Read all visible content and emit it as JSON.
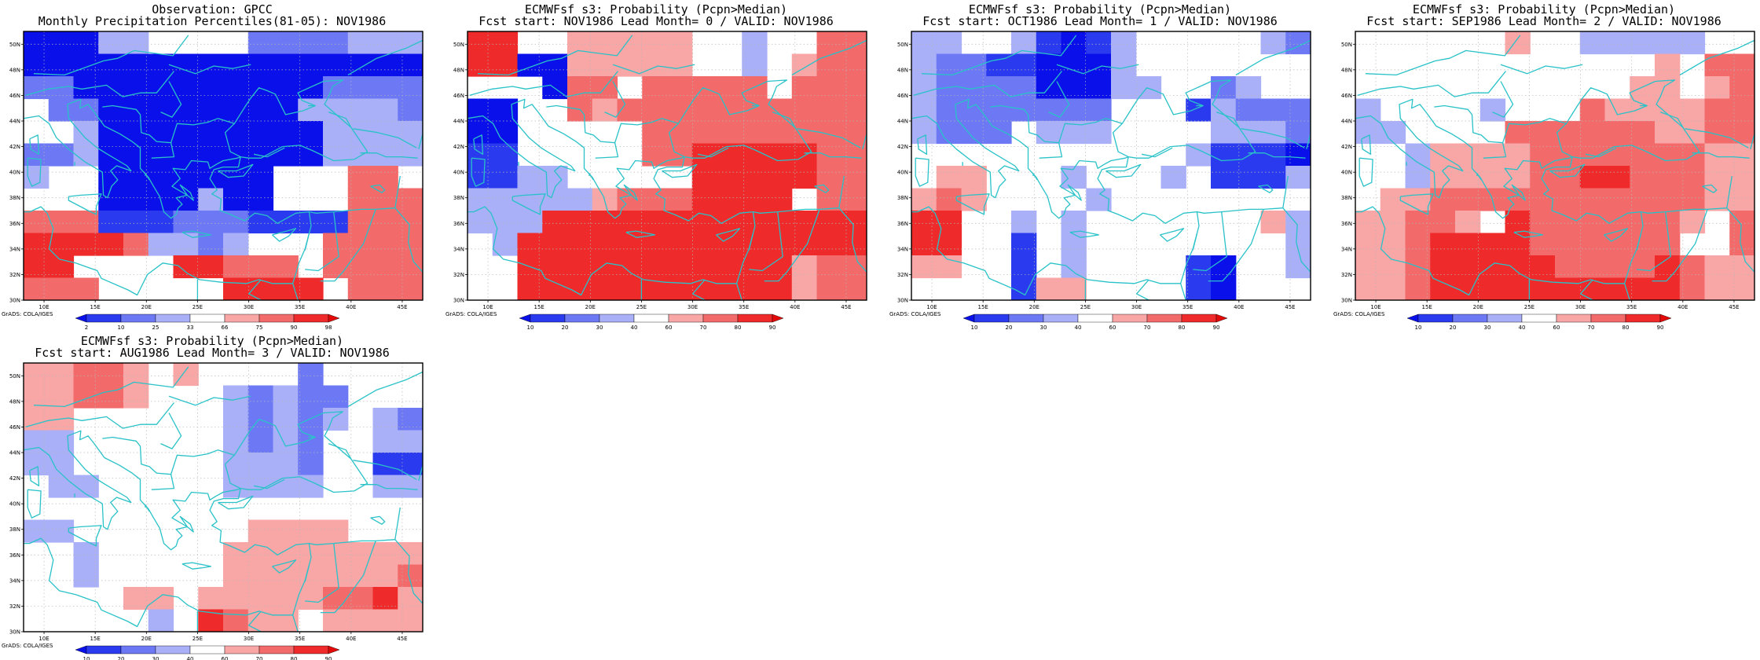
{
  "colorbars": {
    "percentile": {
      "labels": [
        "2",
        "10",
        "25",
        "33",
        "66",
        "75",
        "90",
        "98"
      ],
      "colors": [
        "#0a10ea",
        "#2a3aef",
        "#6c78f4",
        "#a9b0f7",
        "#ffffff",
        "#f8a6a6",
        "#f26a6a",
        "#ee2a2a",
        "#e40a0a"
      ]
    },
    "probability": {
      "labels": [
        "10",
        "20",
        "30",
        "40",
        "60",
        "70",
        "80",
        "90"
      ],
      "colors": [
        "#0a10ea",
        "#2a3aef",
        "#6c78f4",
        "#a9b0f7",
        "#ffffff",
        "#f8a6a6",
        "#f26a6a",
        "#ee2a2a",
        "#e40a0a"
      ]
    }
  },
  "coast_color": "#29c2c8",
  "axes": {
    "lon_labels": [
      "10E",
      "15E",
      "20E",
      "25E",
      "30E",
      "35E",
      "40E",
      "45E"
    ],
    "lat_labels": [
      "50N",
      "48N",
      "46N",
      "44N",
      "42N",
      "40N",
      "38N",
      "36N",
      "34N",
      "32N",
      "30N"
    ]
  },
  "panels": [
    {
      "title1": "Observation: GPCC",
      "title2": "Monthly Precipitation Percentiles(81-05): NOV1986",
      "credit": "GrADS: COLA/IGES",
      "colorbar": "percentile",
      "grid": [
        "BBBDDWWWWEEEEDDD",
        "BBBBBBBBBBBBBBBB",
        "EEBBBBBBBBBBEEEE",
        "WEEBBBBBBBBDDDDE",
        "WWDBBBBBBBBBDDDD",
        "EEDBBBBBBBBBDDDD",
        "DWWBBBBBBBWWWYYW",
        "WWWBBBBDBBWWWYYY",
        "YYYCCCEEECCCCYYY",
        "RRRRYDDEDWWWYYYY",
        "RRWWWWRRYYYWYYYY",
        "YYYWWWWWRRRRWYYY"
      ]
    },
    {
      "title1": "ECMWFsf s3: Probability (Pcpn>Median)",
      "title2": "Fcst start: NOV1986  Lead Month= 0 / VALID: NOV1986",
      "credit": "GrADS: COLA/IGES",
      "colorbar": "probability",
      "grid": [
        "RRWWXXXXXWWDWWYY",
        "RRBBXXXXXWWDWXYY",
        "WWWBYYWYYYYYWYYY",
        "BBWWYXYYYYYYYYYY",
        "BBWWWWWYYYYYYYYY",
        "CCWWWWWYYRRRRRYY",
        "CCDDWWWWWRRRRRYY",
        "DDDDDXYYYRRRRWYY",
        "DDDRRRRRRRRRRRRR",
        "WDRRRRRRRRRRRRRR",
        "WWRRRRRRRRRRRXYY",
        "WWRRRRRRRRRRRXYY"
      ]
    },
    {
      "title1": "ECMWFsf s3: Probability (Pcpn>Median)",
      "title2": "Fcst start: OCT1986  Lead Month= 1 / VALID: NOV1986",
      "credit": "GrADS: COLA/IGES",
      "colorbar": "probability",
      "grid": [
        "DDWWDCBCDWWWWWDE",
        "DEECCBBBDWWWWWWW",
        "DEEEEBBBDDWWEDWW",
        "DEEEEEEEWWWCDEEE",
        "DEEEWDDDWWWWDDDE",
        "WWWWWWWWWWWDCCCB",
        "WXXWWWDWWWDWCCCD",
        "XYXWWWWDWWWWWWWW",
        "RRWWDWDWWWWWWWXD",
        "RRWWCWDWWWWWWWWD",
        "XXWWCWDWWWWCBWWD",
        "WWWWCXXWWWWCBWWW"
      ]
    },
    {
      "title1": "ECMWFsf s3: Probability (Pcpn>Median)",
      "title2": "Fcst start: SEP1986  Lead Month= 2 / VALID: NOV1986",
      "credit": "GrADS: COLA/IGES",
      "colorbar": "probability",
      "grid": [
        "WWWWWWXWWDDDDDWW",
        "WWWWWWWWWWWWXWYY",
        "WWWWWWWWWWWXXWXY",
        "DWWWWDWWWYXXXXYY",
        "DDWWWWYYYYYYXXYY",
        "WWDXXXXYYYYYYYXX",
        "WWDXXXXYYRRYYYXX",
        "WXXYYYYYYYYYYYXX",
        "XXYYXWRYYYYYYXWY",
        "XXYRRRRYYYYYYWWY",
        "XXYRRRRRYYYYRYXX",
        "XXYRRRRRRRRRRYXX"
      ]
    },
    {
      "title1": "ECMWFsf s3: Probability (Pcpn>Median)",
      "title2": "Fcst start: AUG1986  Lead Month= 3 / VALID: NOV1986",
      "credit": "GrADS: COLA/IGES",
      "colorbar": "probability",
      "grid": [
        "XXYYXWXWWWWEWWWW",
        "XXYYXWWWDEDEEWWW",
        "XXWWWWWWDEDEDWDE",
        "DDWWWWWWDEDEWWDD",
        "DDWWWWWWDDDEWWCC",
        "WDDWWWWWDDDDWWDD",
        "WWWWWWWWWWWWWWWW",
        "DDWWWWWWWXXXXWWW",
        "WWDWWWWWXXXXXXXX",
        "WWDWWWWWXXXXXXXY",
        "WWWWXXWXXXXXYYRX",
        "WWWWWDWRYXXWXXXX"
      ]
    }
  ]
}
